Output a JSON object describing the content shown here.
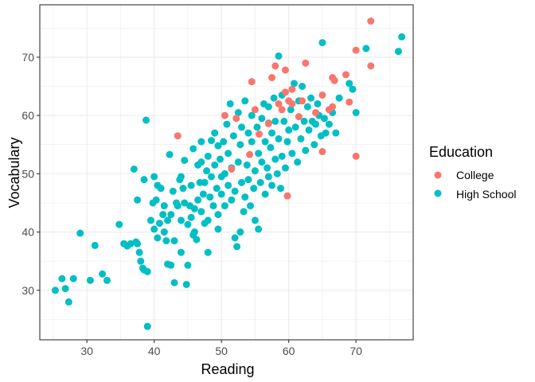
{
  "chart_data": {
    "type": "scatter",
    "xlabel": "Reading",
    "ylabel": "Vocabulary",
    "xlim": [
      23,
      78.5
    ],
    "ylim": [
      21.5,
      79
    ],
    "x_ticks": [
      30,
      40,
      50,
      60,
      70
    ],
    "y_ticks": [
      30,
      40,
      50,
      60,
      70
    ],
    "grid": true,
    "legend": {
      "title": "Education",
      "position": "right"
    },
    "series": [
      {
        "name": "College",
        "color": "#F8766D",
        "points": [
          [
            43.5,
            56.5
          ],
          [
            50.5,
            60.0
          ],
          [
            51.5,
            50.8
          ],
          [
            54.2,
            53.3
          ],
          [
            54.5,
            65.8
          ],
          [
            55.0,
            61.0
          ],
          [
            55.6,
            56.8
          ],
          [
            57.0,
            58.6
          ],
          [
            57.5,
            66.5
          ],
          [
            58.0,
            68.5
          ],
          [
            58.5,
            62.0
          ],
          [
            59.0,
            61.0
          ],
          [
            59.5,
            67.8
          ],
          [
            59.5,
            64.0
          ],
          [
            60.0,
            62.5
          ],
          [
            60.5,
            62.0
          ],
          [
            60.5,
            64.5
          ],
          [
            61.5,
            59.8
          ],
          [
            62.5,
            69.0
          ],
          [
            62.0,
            62.5
          ],
          [
            64.0,
            60.5
          ],
          [
            65.0,
            53.8
          ],
          [
            65.0,
            63.5
          ],
          [
            66.0,
            61.0
          ],
          [
            66.5,
            66.5
          ],
          [
            66.5,
            61.5
          ],
          [
            66.8,
            66.0
          ],
          [
            68.5,
            67.0
          ],
          [
            69.0,
            62.3
          ],
          [
            70.0,
            71.2
          ],
          [
            70.0,
            53.0
          ],
          [
            72.2,
            76.2
          ],
          [
            72.2,
            68.5
          ],
          [
            59.8,
            46.2
          ],
          [
            52.2,
            59.5
          ]
        ]
      },
      {
        "name": "High School",
        "color": "#00BFC4",
        "points": [
          [
            25.3,
            30.0
          ],
          [
            26.3,
            32.0
          ],
          [
            26.8,
            30.3
          ],
          [
            27.3,
            28.0
          ],
          [
            28.0,
            32.0
          ],
          [
            29.0,
            39.8
          ],
          [
            30.5,
            31.7
          ],
          [
            31.2,
            37.7
          ],
          [
            32.3,
            32.8
          ],
          [
            33.0,
            31.7
          ],
          [
            34.8,
            41.3
          ],
          [
            35.5,
            38.0
          ],
          [
            36.0,
            37.6
          ],
          [
            36.5,
            38.0
          ],
          [
            37.0,
            50.8
          ],
          [
            37.3,
            38.3
          ],
          [
            37.5,
            38.0
          ],
          [
            37.5,
            45.5
          ],
          [
            37.8,
            36.5
          ],
          [
            38.0,
            35.0
          ],
          [
            38.3,
            33.8
          ],
          [
            38.5,
            49.0
          ],
          [
            38.5,
            33.5
          ],
          [
            38.8,
            59.2
          ],
          [
            39.0,
            33.2
          ],
          [
            39.0,
            23.8
          ],
          [
            39.5,
            42.0
          ],
          [
            39.8,
            45.0
          ],
          [
            40.0,
            40.5
          ],
          [
            40.0,
            49.5
          ],
          [
            40.3,
            45.5
          ],
          [
            40.5,
            48.0
          ],
          [
            40.8,
            41.5
          ],
          [
            41.0,
            47.5
          ],
          [
            41.3,
            43.0
          ],
          [
            41.5,
            40.0
          ],
          [
            41.5,
            44.5
          ],
          [
            41.8,
            38.5
          ],
          [
            42.0,
            42.0
          ],
          [
            42.0,
            34.5
          ],
          [
            42.3,
            53.3
          ],
          [
            42.5,
            43.0
          ],
          [
            42.5,
            34.3
          ],
          [
            42.8,
            47.0
          ],
          [
            43.0,
            38.5
          ],
          [
            43.0,
            31.3
          ],
          [
            43.3,
            45.0
          ],
          [
            43.5,
            44.5
          ],
          [
            43.8,
            49.0
          ],
          [
            44.0,
            42.0
          ],
          [
            44.0,
            36.5
          ],
          [
            44.3,
            47.5
          ],
          [
            44.5,
            52.3
          ],
          [
            44.5,
            45.0
          ],
          [
            44.8,
            31.0
          ],
          [
            45.0,
            34.3
          ],
          [
            45.0,
            41.3
          ],
          [
            45.3,
            44.5
          ],
          [
            45.5,
            42.5
          ],
          [
            45.5,
            48.0
          ],
          [
            45.8,
            54.3
          ],
          [
            46.0,
            40.0
          ],
          [
            46.0,
            44.0
          ],
          [
            46.3,
            38.7
          ],
          [
            46.5,
            45.5
          ],
          [
            46.5,
            51.5
          ],
          [
            46.8,
            48.5
          ],
          [
            47.0,
            43.5
          ],
          [
            47.0,
            52.0
          ],
          [
            47.3,
            46.5
          ],
          [
            47.5,
            41.5
          ],
          [
            47.5,
            48.5
          ],
          [
            47.8,
            50.5
          ],
          [
            48.0,
            42.0
          ],
          [
            48.0,
            53.0
          ],
          [
            48.3,
            46.0
          ],
          [
            48.5,
            55.7
          ],
          [
            48.5,
            49.5
          ],
          [
            48.8,
            44.5
          ],
          [
            49.0,
            51.5
          ],
          [
            49.0,
            57.0
          ],
          [
            49.3,
            47.5
          ],
          [
            49.5,
            54.8
          ],
          [
            49.5,
            43.0
          ],
          [
            49.8,
            52.5
          ],
          [
            50.0,
            49.5
          ],
          [
            50.0,
            46.5
          ],
          [
            50.3,
            55.5
          ],
          [
            50.5,
            50.0
          ],
          [
            50.5,
            44.5
          ],
          [
            50.8,
            58.5
          ],
          [
            51.0,
            53.5
          ],
          [
            51.0,
            48.0
          ],
          [
            51.3,
            62.0
          ],
          [
            51.5,
            51.0
          ],
          [
            51.5,
            45.5
          ],
          [
            51.8,
            56.5
          ],
          [
            52.0,
            39.0
          ],
          [
            52.0,
            47.0
          ],
          [
            52.3,
            37.5
          ],
          [
            52.5,
            52.0
          ],
          [
            52.5,
            60.5
          ],
          [
            52.8,
            55.0
          ],
          [
            53.0,
            48.5
          ],
          [
            53.0,
            58.0
          ],
          [
            53.3,
            43.5
          ],
          [
            53.5,
            46.0
          ],
          [
            53.5,
            62.5
          ],
          [
            53.8,
            51.5
          ],
          [
            54.0,
            57.0
          ],
          [
            54.0,
            49.0
          ],
          [
            54.3,
            44.5
          ],
          [
            54.5,
            55.5
          ],
          [
            54.5,
            60.0
          ],
          [
            54.8,
            47.5
          ],
          [
            55.0,
            42.0
          ],
          [
            55.0,
            50.5
          ],
          [
            55.3,
            58.0
          ],
          [
            55.5,
            53.5
          ],
          [
            55.5,
            40.5
          ],
          [
            55.8,
            48.5
          ],
          [
            56.0,
            59.5
          ],
          [
            56.0,
            52.0
          ],
          [
            56.3,
            62.0
          ],
          [
            56.5,
            46.5
          ],
          [
            56.5,
            55.5
          ],
          [
            56.8,
            51.0
          ],
          [
            57.0,
            49.5
          ],
          [
            57.0,
            61.5
          ],
          [
            57.3,
            54.5
          ],
          [
            57.5,
            57.0
          ],
          [
            57.5,
            48.0
          ],
          [
            57.8,
            63.0
          ],
          [
            58.0,
            52.5
          ],
          [
            58.0,
            59.0
          ],
          [
            58.3,
            50.0
          ],
          [
            58.5,
            70.2
          ],
          [
            58.5,
            56.0
          ],
          [
            58.8,
            47.5
          ],
          [
            59.0,
            53.0
          ],
          [
            59.0,
            63.5
          ],
          [
            59.3,
            59.0
          ],
          [
            59.5,
            51.0
          ],
          [
            59.8,
            55.5
          ],
          [
            60.0,
            57.5
          ],
          [
            60.3,
            61.0
          ],
          [
            60.5,
            53.5
          ],
          [
            60.8,
            65.5
          ],
          [
            61.0,
            58.0
          ],
          [
            61.3,
            52.0
          ],
          [
            61.5,
            62.5
          ],
          [
            61.8,
            56.0
          ],
          [
            62.0,
            65.0
          ],
          [
            62.3,
            59.0
          ],
          [
            62.5,
            54.0
          ],
          [
            62.8,
            61.5
          ],
          [
            63.0,
            57.5
          ],
          [
            63.3,
            63.0
          ],
          [
            63.5,
            59.0
          ],
          [
            63.8,
            55.0
          ],
          [
            64.0,
            58.5
          ],
          [
            64.3,
            62.0
          ],
          [
            64.5,
            60.0
          ],
          [
            64.8,
            56.5
          ],
          [
            65.0,
            72.5
          ],
          [
            65.3,
            59.5
          ],
          [
            65.5,
            57.0
          ],
          [
            66.0,
            58.5
          ],
          [
            66.5,
            60.5
          ],
          [
            67.0,
            57.0
          ],
          [
            67.5,
            63.0
          ],
          [
            69.0,
            65.5
          ],
          [
            69.5,
            64.5
          ],
          [
            70.0,
            60.5
          ],
          [
            71.5,
            71.5
          ],
          [
            76.3,
            71.0
          ],
          [
            76.8,
            73.5
          ],
          [
            57.0,
            58.7
          ],
          [
            49.5,
            40.5
          ],
          [
            47.0,
            55.5
          ],
          [
            52.8,
            40.0
          ],
          [
            45.8,
            39.5
          ],
          [
            48.0,
            36.5
          ],
          [
            40.5,
            39.0
          ],
          [
            44.0,
            49.5
          ]
        ]
      }
    ]
  }
}
